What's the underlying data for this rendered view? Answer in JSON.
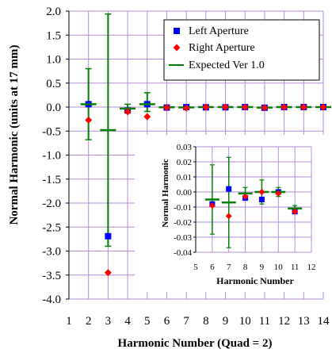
{
  "chart_data": {
    "type": "scatter",
    "title": "",
    "xlabel": "Harmonic Number (Quad = 2)",
    "ylabel": "Normal Harmonic (units at 17 mm)",
    "xlim": [
      1,
      14
    ],
    "ylim": [
      -4.0,
      2.0
    ],
    "x_ticks": [
      "1",
      "2",
      "3",
      "4",
      "5",
      "6",
      "7",
      "8",
      "9",
      "10",
      "11",
      "12",
      "13",
      "14"
    ],
    "y_ticks": [
      "2.0",
      "1.5",
      "1.0",
      "0.5",
      "0.0",
      "-0.5",
      "-1.0",
      "-1.5",
      "-2.0",
      "-2.5",
      "-3.0",
      "-3.5",
      "-4.0"
    ],
    "grid": true,
    "legend_position": "top-right",
    "series": [
      {
        "name": "Left Aperture",
        "marker": "square",
        "color": "#0000ff",
        "x": [
          2,
          3,
          4,
          5,
          6,
          7,
          8,
          9,
          10,
          11,
          12,
          13,
          14
        ],
        "y": [
          0.06,
          -2.69,
          -0.07,
          0.06,
          -0.01,
          0.0,
          -0.005,
          -0.005,
          0.0,
          -0.013,
          0.0,
          0.0,
          0.0
        ]
      },
      {
        "name": "Right Aperture",
        "marker": "diamond",
        "color": "#ff0000",
        "x": [
          2,
          3,
          4,
          5,
          6,
          7,
          8,
          9,
          10,
          11,
          12,
          13,
          14
        ],
        "y": [
          -0.27,
          -3.45,
          -0.1,
          -0.2,
          -0.01,
          -0.02,
          -0.003,
          0.0,
          -0.001,
          -0.013,
          0.0,
          0.0,
          0.0
        ]
      },
      {
        "name": "Expected Ver 1.0",
        "marker": "dash-errorbar",
        "color": "#008000",
        "x": [
          2,
          3,
          4,
          5,
          6,
          7,
          8,
          9,
          10,
          11,
          12,
          13,
          14
        ],
        "y": [
          0.06,
          -0.48,
          -0.03,
          0.06,
          -0.005,
          -0.007,
          -0.001,
          0.0,
          0.0,
          -0.011,
          0.0,
          0.0,
          0.0
        ],
        "err_low": [
          -0.68,
          -2.9,
          -0.12,
          -0.09,
          -0.028,
          -0.037,
          -0.005,
          -0.008,
          -0.003,
          -0.013,
          0.0,
          0.0,
          0.0
        ],
        "err_high": [
          0.8,
          1.94,
          0.06,
          0.3,
          0.018,
          0.023,
          0.003,
          0.008,
          0.003,
          -0.009,
          0.0,
          0.0,
          0.0
        ]
      }
    ],
    "inset": {
      "xlabel": "Harmonic Number",
      "ylabel": "Normal Harmonic",
      "xlim": [
        5,
        12
      ],
      "ylim": [
        -0.04,
        0.03
      ],
      "x_ticks": [
        "5",
        "6",
        "7",
        "8",
        "9",
        "10",
        "11",
        "12"
      ],
      "y_ticks": [
        "0.03",
        "0.02",
        "0.01",
        "0.00",
        "-0.01",
        "-0.02",
        "-0.03",
        "-0.04"
      ],
      "series": [
        {
          "name": "Left Aperture",
          "x": [
            6,
            7,
            8,
            9,
            10,
            11
          ],
          "y": [
            -0.008,
            0.002,
            -0.004,
            -0.005,
            0.0,
            -0.013
          ]
        },
        {
          "name": "Right Aperture",
          "x": [
            6,
            7,
            8,
            9,
            10,
            11
          ],
          "y": [
            -0.009,
            -0.016,
            -0.003,
            0.0,
            -0.001,
            -0.013
          ]
        },
        {
          "name": "Expected Ver 1.0",
          "x": [
            6,
            7,
            8,
            9,
            10,
            11
          ],
          "y": [
            -0.005,
            -0.007,
            -0.001,
            0.0,
            0.0,
            -0.011
          ],
          "err_low": [
            -0.028,
            -0.037,
            -0.005,
            -0.008,
            -0.003,
            -0.013
          ],
          "err_high": [
            0.018,
            0.023,
            0.003,
            0.008,
            0.003,
            -0.009
          ]
        }
      ]
    }
  }
}
